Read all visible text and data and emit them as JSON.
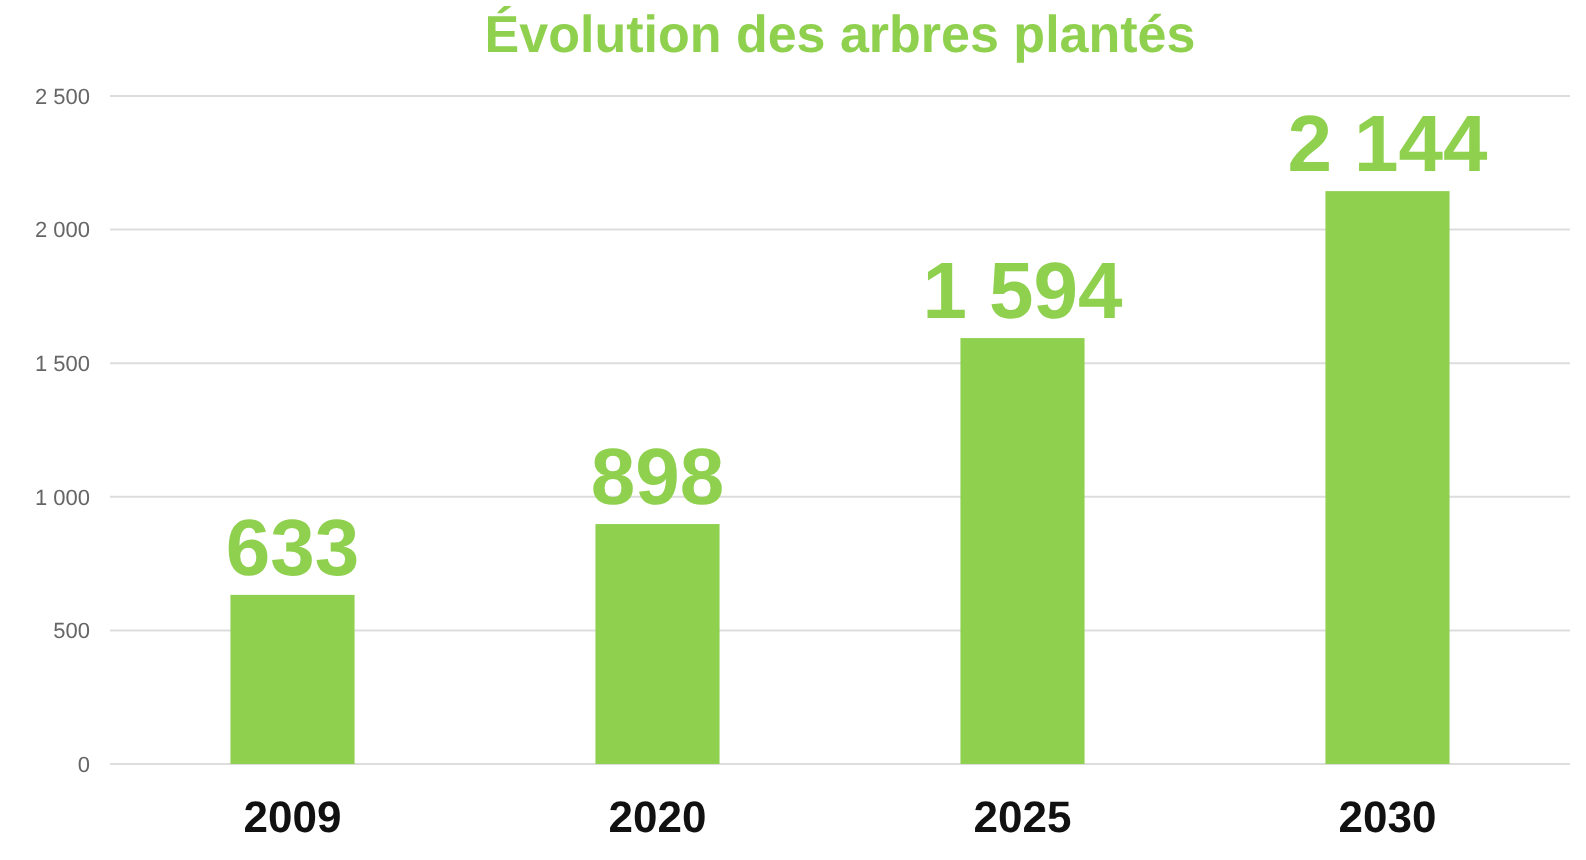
{
  "chart_data": {
    "type": "bar",
    "title": "Évolution des arbres plantés",
    "categories": [
      "2009",
      "2020",
      "2025",
      "2030"
    ],
    "values": [
      633,
      898,
      1594,
      2144
    ],
    "value_labels": [
      "633",
      "898",
      "1 594",
      "2 144"
    ],
    "color": "#8fd14f",
    "ylim": [
      0,
      2500
    ],
    "yticks": [
      0,
      {
        "value": 500,
        "label": "500"
      },
      {
        "value": 1000,
        "label": "1 000"
      },
      {
        "value": 1500,
        "label": "1 500"
      },
      {
        "value": 2000,
        "label": "2 000"
      },
      {
        "value": 2500,
        "label": "2 500"
      }
    ],
    "grid": true
  }
}
